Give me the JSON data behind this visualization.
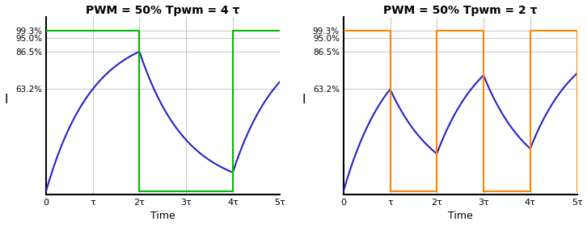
{
  "title1": "PWM = 50% Tpwm = 4 τ",
  "title2": "PWM = 50% Tpwm = 2 τ",
  "xlabel": "Time",
  "ylabel": "I",
  "ytick_values": [
    0.0,
    0.632,
    0.865,
    0.95,
    0.993
  ],
  "ytick_labels": [
    "",
    "63.2%",
    "86.5%",
    "95.0%",
    "99.3%"
  ],
  "xlim": [
    0,
    5
  ],
  "ylim": [
    -0.02,
    1.08
  ],
  "xtick_labels": [
    "0",
    "τ",
    "2τ",
    "3τ",
    "4τ",
    "5τ"
  ],
  "xtick_values": [
    0,
    1,
    2,
    3,
    4,
    5
  ],
  "pwm_color1": "#00bb00",
  "pwm_color2": "#ff8800",
  "curve_color": "#2222cc",
  "grid_color": "#cccccc",
  "bg_color": "#ffffff",
  "pwm_level": 0.993,
  "pwm_duty": 0.5,
  "tau": 1.0,
  "period1": 4.0,
  "period2": 2.0,
  "total_time": 5.0,
  "hline_values": [
    0.632,
    0.865,
    0.95,
    0.993
  ],
  "hline_color": "#cccccc"
}
